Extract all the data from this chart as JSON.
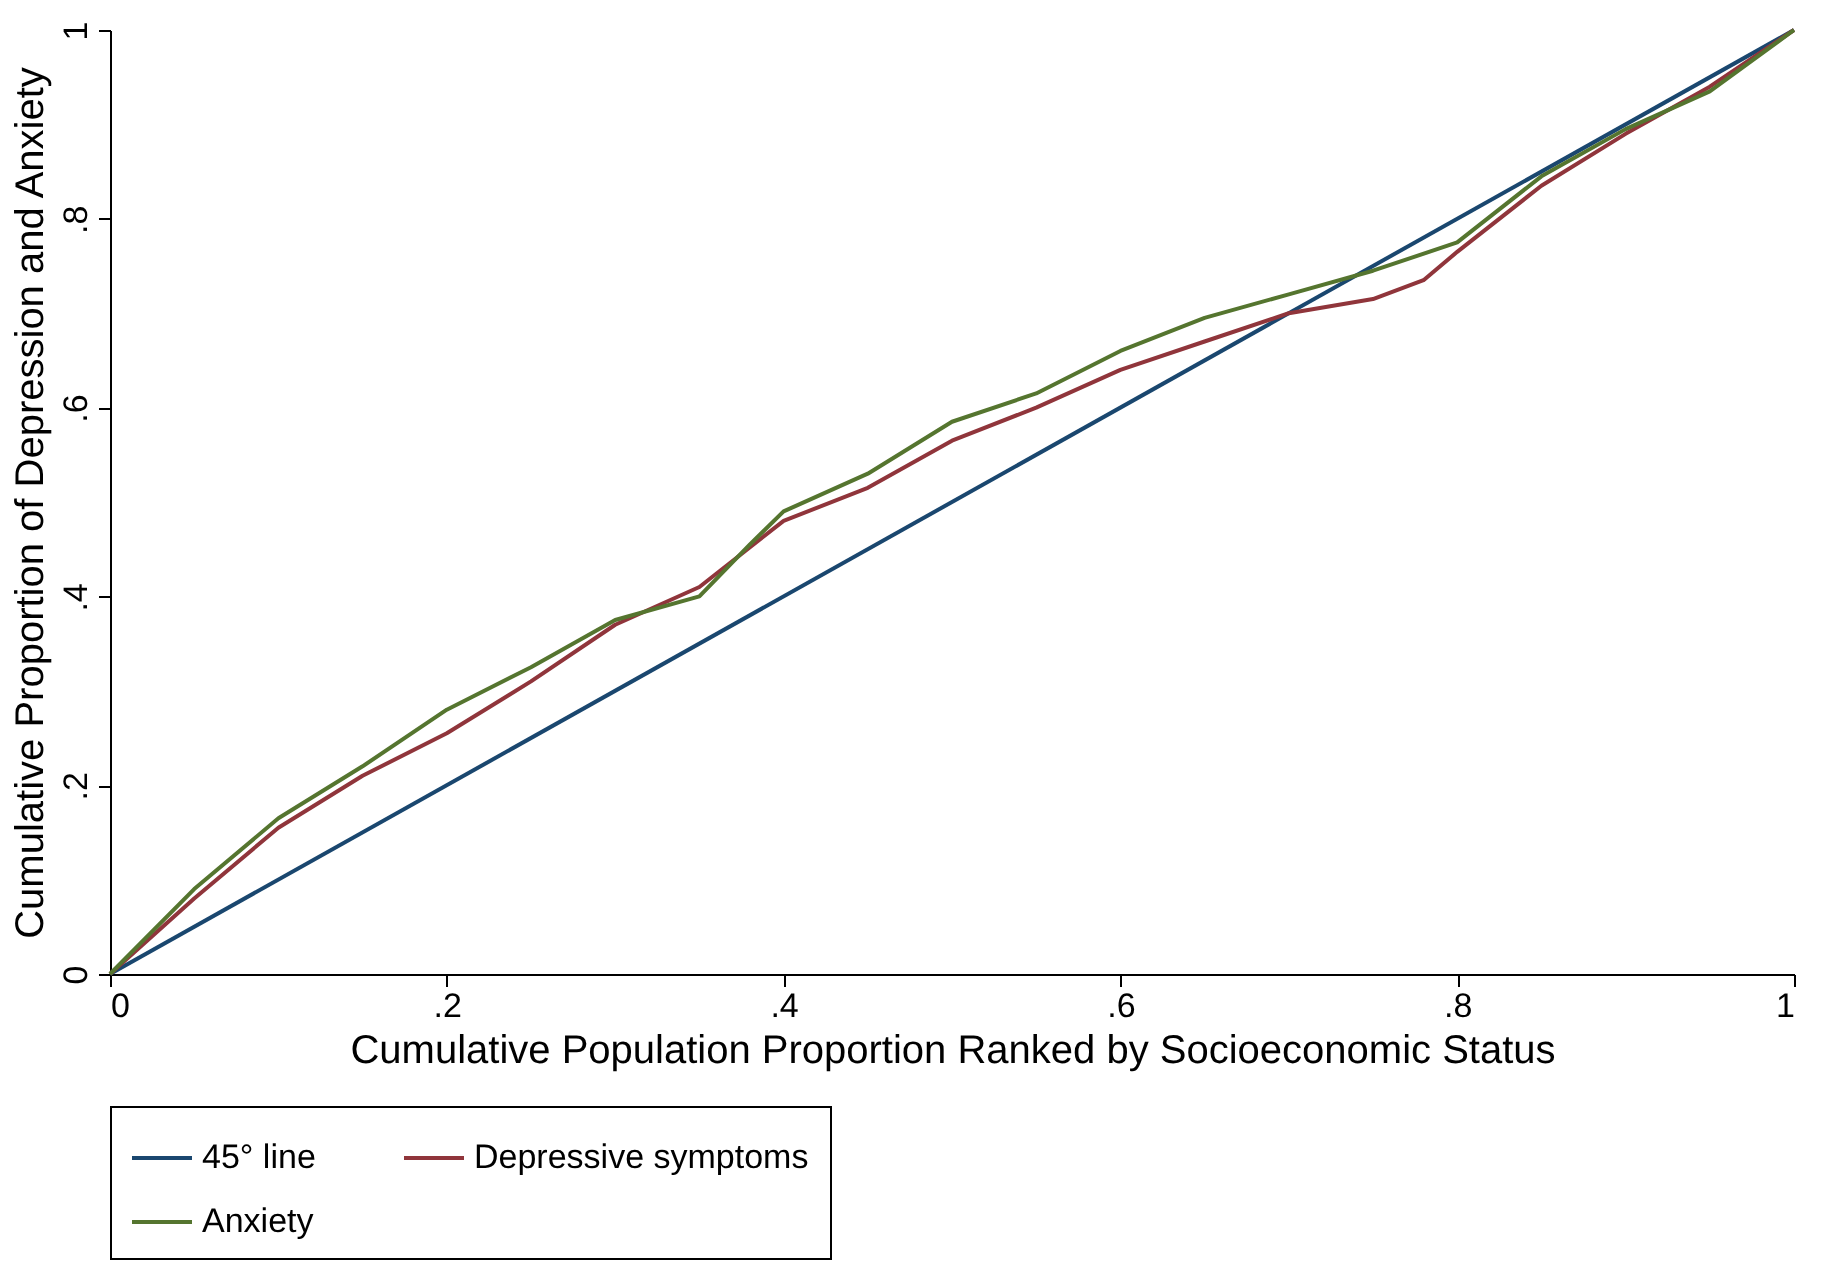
{
  "chart_data": {
    "type": "line",
    "xlabel": "Cumulative Population Proportion Ranked by Socioeconomic Status",
    "ylabel": "Cumulative Proportion of Depression and Anxiety",
    "xlim": [
      0,
      1
    ],
    "ylim": [
      0,
      1
    ],
    "xticks": [
      0,
      {
        "value": 0.2,
        "label": ".2"
      },
      {
        "value": 0.4,
        "label": ".4"
      },
      {
        "value": 0.6,
        "label": ".6"
      },
      {
        "value": 0.8,
        "label": ".8"
      },
      1
    ],
    "yticks": [
      0,
      {
        "value": 0.2,
        "label": ".2"
      },
      {
        "value": 0.4,
        "label": ".4"
      },
      {
        "value": 0.6,
        "label": ".6"
      },
      {
        "value": 0.8,
        "label": ".8"
      },
      1
    ],
    "grid": false,
    "legend": "bottom",
    "marker": "none",
    "line_style": "solid",
    "series": [
      {
        "name": "45° line",
        "color": "#1a476f",
        "x": [
          0,
          1
        ],
        "values": [
          0,
          1
        ]
      },
      {
        "name": "Depressive symptoms",
        "color": "#90353b",
        "x": [
          0,
          0.05,
          0.1,
          0.15,
          0.2,
          0.25,
          0.3,
          0.35,
          0.4,
          0.45,
          0.5,
          0.55,
          0.6,
          0.65,
          0.7,
          0.75,
          0.78,
          0.8,
          0.85,
          0.9,
          0.95,
          1
        ],
        "values": [
          0,
          0.08,
          0.155,
          0.21,
          0.255,
          0.31,
          0.37,
          0.41,
          0.48,
          0.515,
          0.565,
          0.6,
          0.64,
          0.67,
          0.7,
          0.715,
          0.735,
          0.765,
          0.835,
          0.89,
          0.94,
          1
        ]
      },
      {
        "name": "Anxiety",
        "color": "#55752f",
        "x": [
          0,
          0.05,
          0.1,
          0.15,
          0.2,
          0.25,
          0.3,
          0.35,
          0.38,
          0.4,
          0.45,
          0.5,
          0.55,
          0.6,
          0.65,
          0.7,
          0.75,
          0.8,
          0.85,
          0.9,
          0.95,
          1
        ],
        "values": [
          0,
          0.09,
          0.165,
          0.22,
          0.28,
          0.325,
          0.375,
          0.4,
          0.455,
          0.49,
          0.53,
          0.585,
          0.615,
          0.66,
          0.695,
          0.72,
          0.745,
          0.775,
          0.845,
          0.895,
          0.935,
          1
        ]
      }
    ]
  }
}
